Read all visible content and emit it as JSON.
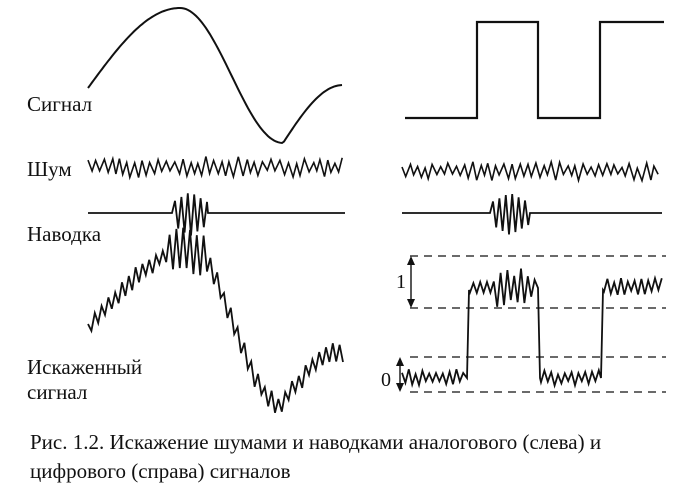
{
  "rows": {
    "signal": "Сигнал",
    "noise": "Шум",
    "interference": "Наводка",
    "distorted_line1": "Искаженный",
    "distorted_line2": "сигнал"
  },
  "levels": {
    "one": "1",
    "zero": "0"
  },
  "caption": "Рис. 1.2. Искажение шумами и наводками аналогового (слева) и цифрового (справа) сигналов",
  "colors": {
    "ink": "#111111",
    "background": "#ffffff"
  }
}
